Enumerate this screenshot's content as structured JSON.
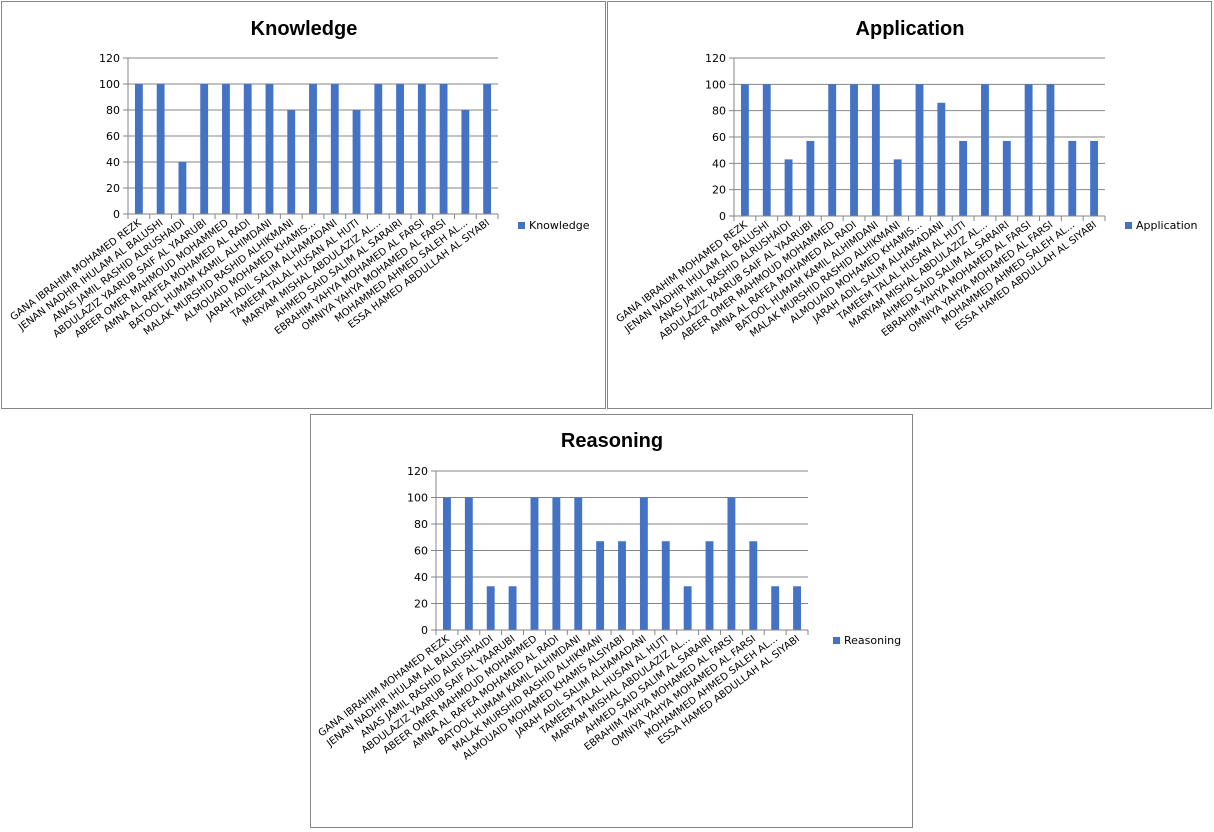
{
  "chart_data": [
    {
      "type": "bar",
      "title": "Knowledge",
      "categories": [
        "GANA IBRAHIM MOHAMED REZK",
        "JENAN NADHIR IHULAM AL BALUSHI",
        "ANAS JAMIL RASHID ALRUSHAIDI",
        "ABDULAZIZ YAARUB SAIF AL YAARUBI",
        "ABEER OMER MAHMOUD MOHAMMED",
        "AMNA AL RAFEA MOHAMED AL RADI",
        "BATOOL HUMAM KAMIL ALHIMDANI",
        "MALAK MURSHID RASHID ALHIKMANI",
        "ALMOUAID MOHAMED KHAMIS...",
        "JARAH ADIL SALIM ALHAMADANI",
        "TAMEEM TALAL HUSAN AL HUTI",
        "MARYAM MISHAL ABDULAZIZ AL...",
        "AHMED SAID SALIM AL SARAIRI",
        "EBRAHIM YAHYA MOHAMED AL FARSI",
        "OMNIYA YAHYA MOHAMED AL FARSI",
        "MOHAMMED AHMED SALEH AL...",
        "ESSA HAMED ABDULLAH AL SIYABI"
      ],
      "series": [
        {
          "name": "Knowledge",
          "values": [
            100,
            100,
            40,
            100,
            100,
            100,
            100,
            80,
            100,
            100,
            80,
            100,
            100,
            100,
            100,
            80,
            100
          ],
          "color": "#4472C4"
        }
      ],
      "yticks": [
        "0",
        "20",
        "40",
        "60",
        "80",
        "100",
        "120"
      ],
      "ylim": [
        0,
        120
      ],
      "grid": true,
      "legend": "right"
    },
    {
      "type": "bar",
      "title": "Application",
      "categories": [
        "GANA IBRAHIM MOHAMED REZK",
        "JENAN NADHIR IHULAM AL BALUSHI",
        "ANAS JAMIL RASHID ALRUSHAIDI",
        "ABDULAZIZ YAARUB SAIF AL YAARUBI",
        "ABEER OMER MAHMOUD MOHAMMED",
        "AMNA AL RAFEA MOHAMED AL RADI",
        "BATOOL HUMAM KAMIL ALHIMDANI",
        "MALAK MURSHID RASHID ALHIKMANI",
        "ALMOUAID MOHAMED KHAMIS...",
        "JARAH ADIL SALIM ALHAMADANI",
        "TAMEEM TALAL HUSAN AL HUTI",
        "MARYAM MISHAL ABDULAZIZ AL...",
        "AHMED SAID SALIM AL SARAIRI",
        "EBRAHIM YAHYA MOHAMED AL FARSI",
        "OMNIYA YAHYA MOHAMED AL FARSI",
        "MOHAMMED AHMED SALEH AL...",
        "ESSA HAMED ABDULLAH AL SIYABI"
      ],
      "series": [
        {
          "name": "Application",
          "values": [
            100,
            100,
            43,
            57,
            100,
            100,
            100,
            43,
            100,
            86,
            57,
            100,
            57,
            100,
            100,
            57,
            57
          ],
          "color": "#4472C4"
        }
      ],
      "yticks": [
        "0",
        "20",
        "40",
        "60",
        "80",
        "100",
        "120"
      ],
      "ylim": [
        0,
        120
      ],
      "grid": true,
      "legend": "right"
    },
    {
      "type": "bar",
      "title": "Reasoning",
      "categories": [
        "GANA IBRAHIM MOHAMED REZK",
        "JENAN NADHIR IHULAM AL BALUSHI",
        "ANAS JAMIL RASHID ALRUSHAIDI",
        "ABDULAZIZ YAARUB SAIF AL YAARUBI",
        "ABEER OMER MAHMOUD MOHAMMED",
        "AMNA AL RAFEA MOHAMED AL RADI",
        "BATOOL HUMAM KAMIL ALHIMDANI",
        "MALAK MURSHID RASHID ALHIKMANI",
        "ALMOUAID MOHAMED KHAMIS ALSIYABI",
        "JARAH ADIL SALIM ALHAMADANI",
        "TAMEEM TALAL HUSAN AL HUTI",
        "MARYAM MISHAL ABDULAZIZ AL...",
        "AHMED SAID SALIM AL SARAIRI",
        "EBRAHIM YAHYA MOHAMED AL FARSI",
        "OMNIYA YAHYA MOHAMED AL FARSI",
        "MOHAMMED AHMED SALEH AL...",
        "ESSA HAMED ABDULLAH AL SIYABI"
      ],
      "series": [
        {
          "name": "Reasoning",
          "values": [
            100,
            100,
            33,
            33,
            100,
            100,
            100,
            67,
            67,
            100,
            67,
            33,
            67,
            100,
            67,
            33,
            33
          ],
          "color": "#4472C4"
        }
      ],
      "yticks": [
        "0",
        "20",
        "40",
        "60",
        "80",
        "100",
        "120"
      ],
      "ylim": [
        0,
        120
      ],
      "grid": true,
      "legend": "right"
    }
  ]
}
